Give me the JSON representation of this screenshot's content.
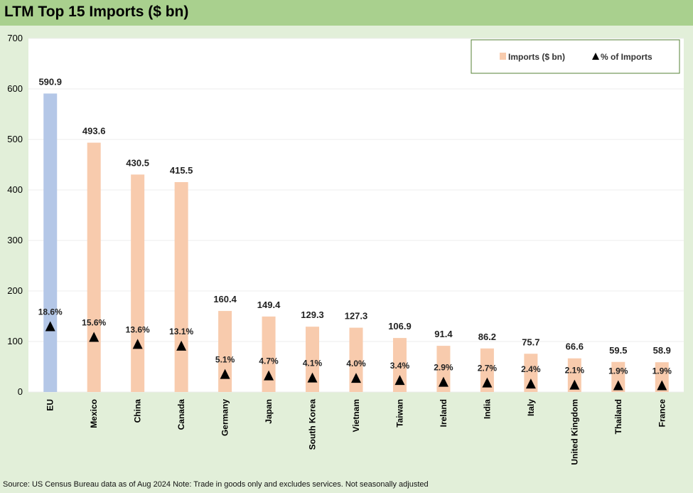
{
  "title": "LTM Top 15 Imports ($ bn)",
  "source_note": "Source: US Census Bureau data as of Aug 2024 Note: Trade in goods only and excludes services. Not seasonally adjusted",
  "chart_data": {
    "type": "bar",
    "title": "LTM Top 15 Imports ($ bn)",
    "categories": [
      "EU",
      "Mexico",
      "China",
      "Canada",
      "Germany",
      "Japan",
      "South Korea",
      "Vietnam",
      "Taiwan",
      "Ireland",
      "India",
      "Italy",
      "United Kingdom",
      "Thailand",
      "France"
    ],
    "series": [
      {
        "name": "Imports ($ bn)",
        "kind": "bar",
        "values": [
          590.9,
          493.6,
          430.5,
          415.5,
          160.4,
          149.4,
          129.3,
          127.3,
          106.9,
          91.4,
          86.2,
          75.7,
          66.6,
          59.5,
          58.9
        ],
        "data_labels": [
          "590.9",
          "493.6",
          "430.5",
          "415.5",
          "160.4",
          "149.4",
          "129.3",
          "127.3",
          "106.9",
          "91.4",
          "86.2",
          "75.7",
          "66.6",
          "59.5",
          "58.9"
        ],
        "color": "#f8cbad",
        "highlight_color": "#b4c7e7",
        "highlight_index": 0
      },
      {
        "name": "% of Imports",
        "kind": "marker-triangle",
        "values": [
          18.6,
          15.6,
          13.6,
          13.1,
          5.1,
          4.7,
          4.1,
          4.0,
          3.4,
          2.9,
          2.7,
          2.4,
          2.1,
          1.9,
          1.9
        ],
        "data_labels": [
          "18.6%",
          "15.6%",
          "13.6%",
          "13.1%",
          "5.1%",
          "4.7%",
          "4.1%",
          "4.0%",
          "3.4%",
          "2.9%",
          "2.7%",
          "2.4%",
          "2.1%",
          "1.9%",
          "1.9%"
        ],
        "color": "#000000"
      }
    ],
    "ylim": [
      0,
      700
    ],
    "yticks": [
      0,
      100,
      200,
      300,
      400,
      500,
      600,
      700
    ],
    "percent_scale_max": 100,
    "grid": true,
    "legend_position": "top-right",
    "legend_border_color": "#548235"
  }
}
